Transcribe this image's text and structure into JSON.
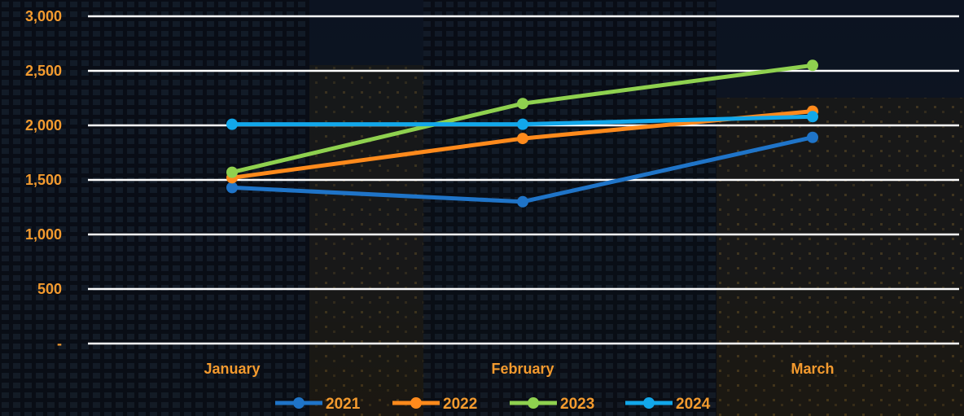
{
  "chart_data": {
    "type": "line",
    "categories": [
      "January",
      "February",
      "March"
    ],
    "ytick_labels": [
      "-",
      "500",
      "1,000",
      "1,500",
      "2,000",
      "2,500",
      "3,000"
    ],
    "ylim": [
      0,
      3000
    ],
    "grid": true,
    "legend_position": "bottom",
    "series": [
      {
        "name": "2021",
        "values": [
          1430,
          1300,
          1890
        ],
        "color": "#1f74c8"
      },
      {
        "name": "2022",
        "values": [
          1520,
          1880,
          2130
        ],
        "color": "#ff8a1c"
      },
      {
        "name": "2023",
        "values": [
          1570,
          2200,
          2550
        ],
        "color": "#8fd14f"
      },
      {
        "name": "2024",
        "values": [
          2010,
          2010,
          2080
        ],
        "color": "#12a7ea"
      }
    ],
    "label_color": "#f39a2e",
    "grid_color": "#ffffff"
  }
}
